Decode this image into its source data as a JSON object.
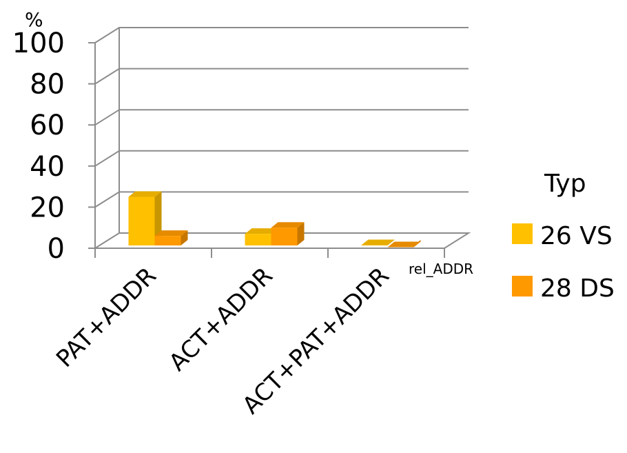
{
  "chart_data": {
    "type": "bar",
    "y_unit": "%",
    "depth_axis_label": "rel_ADDR",
    "categories": [
      "PAT+ADDR",
      "ACT+ADDR",
      "ACT+PAT+ADDR"
    ],
    "series": [
      {
        "name": "26 VS",
        "values": [
          25,
          7,
          1.5
        ],
        "color": "#FFC000"
      },
      {
        "name": "28 DS",
        "values": [
          6,
          10,
          0.5
        ],
        "color": "#FF9900"
      }
    ],
    "ylim": [
      0,
      100
    ],
    "yticks": [
      0,
      20,
      40,
      60,
      80,
      100
    ],
    "legend": {
      "title": "Typ",
      "position": "right"
    },
    "grid": true
  }
}
